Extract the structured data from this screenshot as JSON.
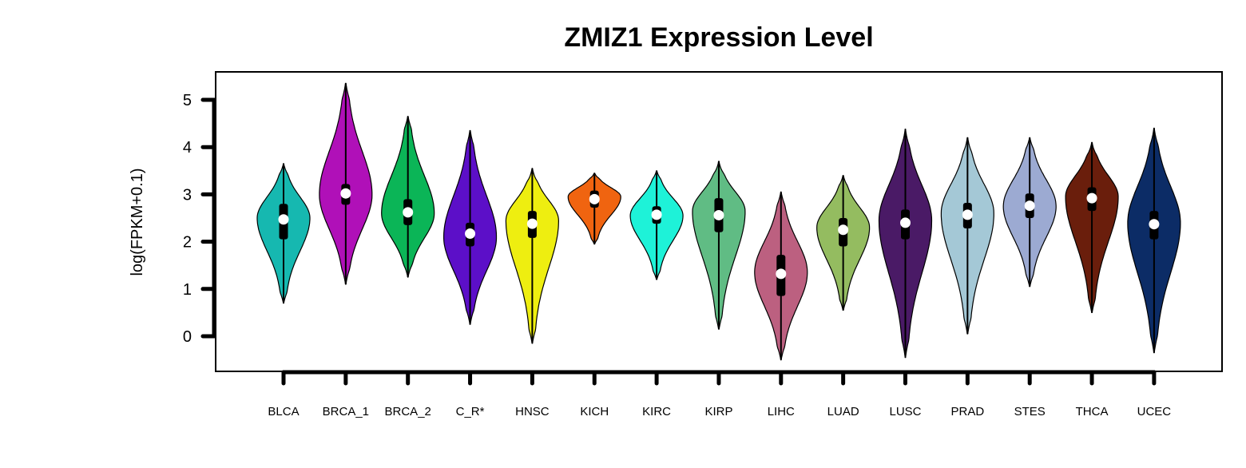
{
  "chart_data": {
    "type": "violin",
    "title": "ZMIZ1 Expression Level",
    "xlabel": "",
    "ylabel": "log(FPKM+0.1)",
    "ylim": [
      -0.75,
      5.6
    ],
    "yticks": [
      0,
      1,
      2,
      3,
      4,
      5
    ],
    "grid": false,
    "legend": "none",
    "groups": [
      {
        "label": "BLCA",
        "color": "#16B8B0",
        "min": 0.7,
        "q1": 2.05,
        "median": 2.47,
        "q3": 2.8,
        "max": 3.65,
        "mode": 2.5
      },
      {
        "label": "BRCA_1",
        "color": "#B010B8",
        "min": 1.1,
        "q1": 2.78,
        "median": 3.02,
        "q3": 3.22,
        "max": 5.35,
        "mode": 3.0
      },
      {
        "label": "BRCA_2",
        "color": "#0BB557",
        "min": 1.25,
        "q1": 2.35,
        "median": 2.62,
        "q3": 2.9,
        "max": 4.65,
        "mode": 2.6
      },
      {
        "label": "C_R*",
        "color": "#5C0FC8",
        "min": 0.25,
        "q1": 1.9,
        "median": 2.17,
        "q3": 2.4,
        "max": 4.35,
        "mode": 2.1
      },
      {
        "label": "HNSC",
        "color": "#EEEE10",
        "min": -0.15,
        "q1": 2.08,
        "median": 2.38,
        "q3": 2.65,
        "max": 3.55,
        "mode": 2.45
      },
      {
        "label": "KICH",
        "color": "#F06410",
        "min": 1.95,
        "q1": 2.72,
        "median": 2.9,
        "q3": 3.08,
        "max": 3.45,
        "mode": 2.95
      },
      {
        "label": "KIRC",
        "color": "#1EF2D8",
        "min": 1.2,
        "q1": 2.38,
        "median": 2.57,
        "q3": 2.75,
        "max": 3.5,
        "mode": 2.55
      },
      {
        "label": "KIRP",
        "color": "#60BC84",
        "min": 0.15,
        "q1": 2.2,
        "median": 2.56,
        "q3": 2.92,
        "max": 3.7,
        "mode": 2.65
      },
      {
        "label": "LIHC",
        "color": "#BC6080",
        "min": -0.5,
        "q1": 0.85,
        "median": 1.32,
        "q3": 1.72,
        "max": 3.05,
        "mode": 1.35
      },
      {
        "label": "LUAD",
        "color": "#94BC60",
        "min": 0.55,
        "q1": 1.9,
        "median": 2.25,
        "q3": 2.5,
        "max": 3.4,
        "mode": 2.3
      },
      {
        "label": "LUSC",
        "color": "#4A1A66",
        "min": -0.45,
        "q1": 2.05,
        "median": 2.4,
        "q3": 2.68,
        "max": 4.38,
        "mode": 2.45
      },
      {
        "label": "PRAD",
        "color": "#A4C8D6",
        "min": 0.05,
        "q1": 2.28,
        "median": 2.57,
        "q3": 2.82,
        "max": 4.2,
        "mode": 2.6
      },
      {
        "label": "STES",
        "color": "#9CAAD2",
        "min": 1.05,
        "q1": 2.5,
        "median": 2.76,
        "q3": 3.02,
        "max": 4.2,
        "mode": 2.75
      },
      {
        "label": "THCA",
        "color": "#6A1E0C",
        "min": 0.5,
        "q1": 2.65,
        "median": 2.92,
        "q3": 3.15,
        "max": 4.1,
        "mode": 2.95
      },
      {
        "label": "UCEC",
        "color": "#0C2C66",
        "min": -0.35,
        "q1": 2.05,
        "median": 2.37,
        "q3": 2.65,
        "max": 4.4,
        "mode": 2.4
      }
    ]
  }
}
